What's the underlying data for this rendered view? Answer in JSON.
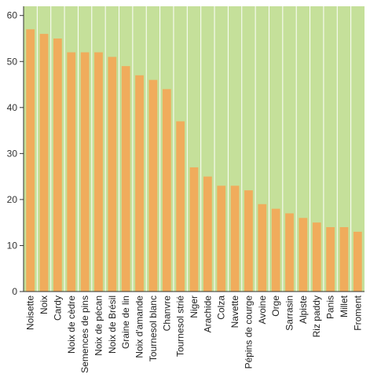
{
  "chart_data": {
    "type": "bar",
    "categories": [
      "Noisette",
      "Noix",
      "Cardy",
      "Noix de cèdre",
      "Semences de pins",
      "Noix de pécan",
      "Noix de Brésil",
      "Graine de lin",
      "Noix d'amande",
      "Tournesol blanc",
      "Chanvre",
      "Tournesol strié",
      "Niger",
      "Arachide",
      "Colza",
      "Navette",
      "Pépins de courge",
      "Avoine",
      "Orge",
      "Sarrasin",
      "Alpiste",
      "Riz paddy",
      "Panis",
      "Millet",
      "Froment"
    ],
    "values": [
      57,
      56,
      55,
      52,
      52,
      52,
      51,
      49,
      47,
      46,
      44,
      37,
      27,
      25,
      23,
      23,
      22,
      19,
      18,
      17,
      16,
      15,
      14,
      14,
      13
    ],
    "yticks": [
      0,
      10,
      20,
      30,
      40,
      50,
      60
    ],
    "ylim": [
      0,
      62
    ],
    "title": "",
    "xlabel": "",
    "ylabel": "",
    "grid": "vertical",
    "colors": {
      "plot_bg": "#c5e09a",
      "bar": "#f0ac5c",
      "grid": "#ffffff",
      "axis": "#333333"
    }
  }
}
